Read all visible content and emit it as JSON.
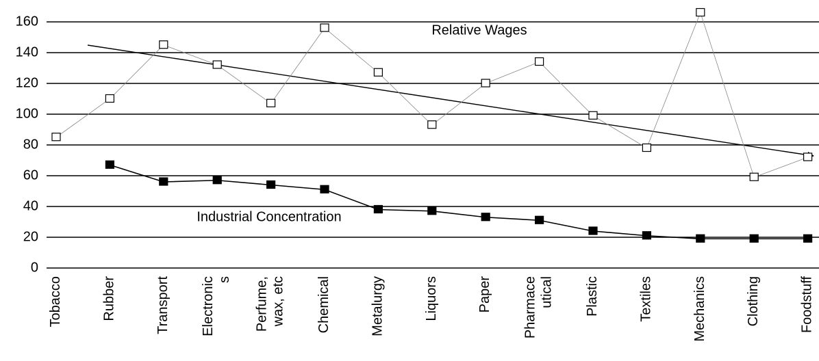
{
  "chart_data": {
    "type": "line",
    "categories": [
      "Tobacco",
      "Rubber",
      "Transport",
      "Electronic\ns",
      "Perfume,\nwax, etc",
      "Chemical",
      "Metalurgy",
      "Liquors",
      "Paper",
      "Pharmace\nutical",
      "Plastic",
      "Textiles",
      "Mechanics",
      "Clothing",
      "Foodstuff"
    ],
    "series": [
      {
        "name": "Relative Wages",
        "color": "#ffffff",
        "values": [
          85,
          110,
          145,
          132,
          107,
          156,
          127,
          93,
          120,
          134,
          99,
          78,
          166,
          59,
          72
        ]
      },
      {
        "name": "Industrial Concentration",
        "color": "#000000",
        "values": [
          null,
          67,
          56,
          57,
          54,
          51,
          38,
          37,
          33,
          31,
          24,
          21,
          19,
          19,
          19
        ]
      }
    ],
    "ylim": [
      0,
      170
    ],
    "yticks": [
      0,
      20,
      40,
      60,
      80,
      100,
      120,
      140,
      160
    ],
    "grid": true
  }
}
